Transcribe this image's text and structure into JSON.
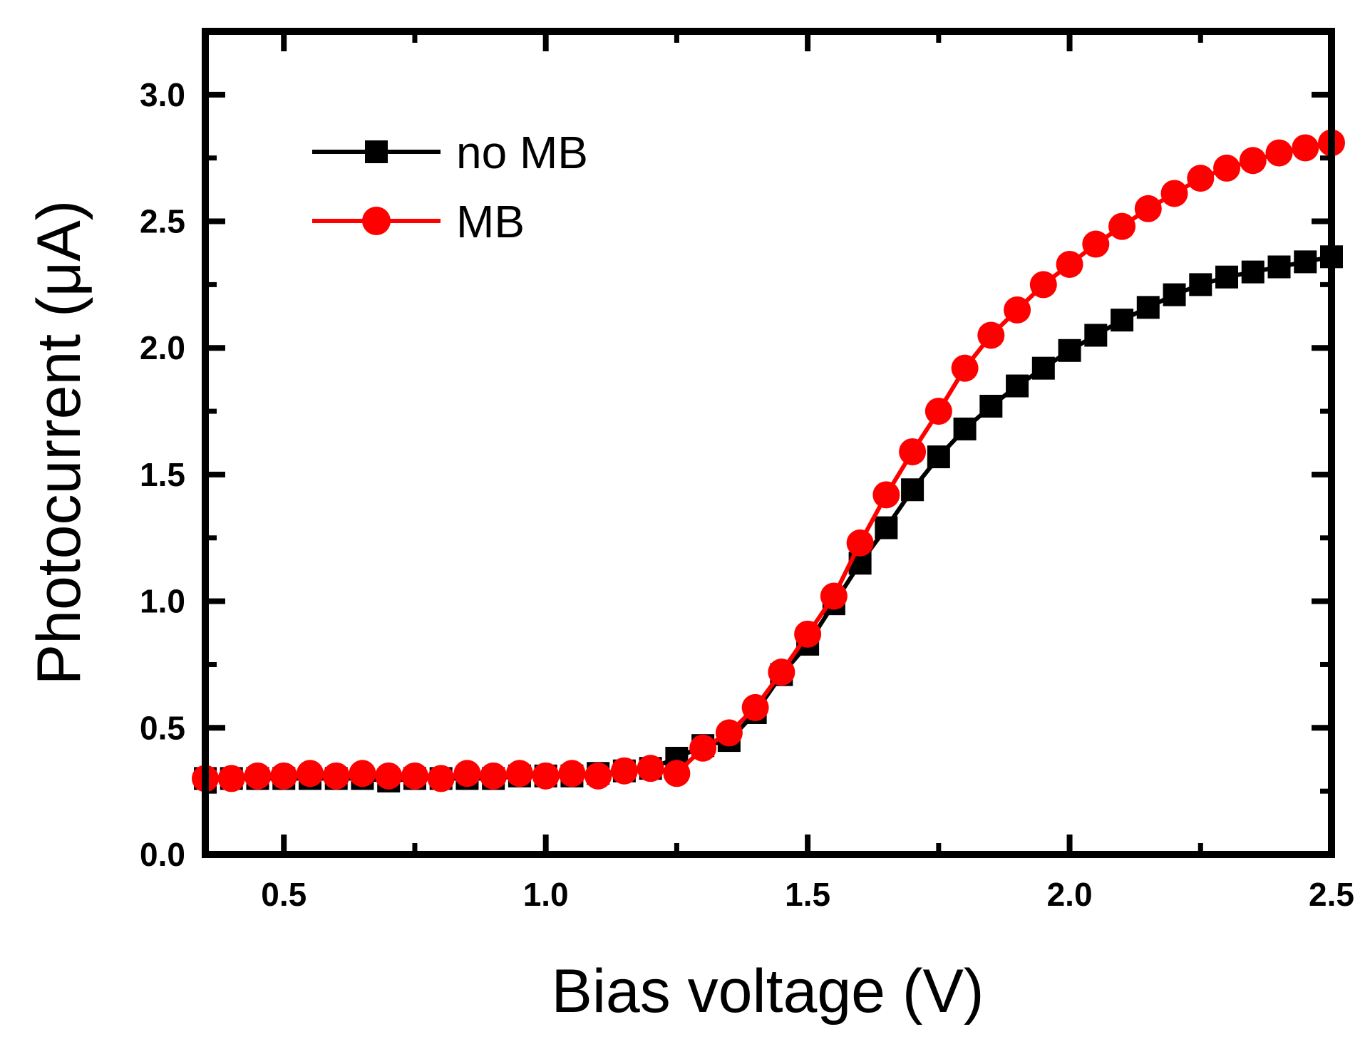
{
  "chart_data": {
    "type": "line",
    "title": "",
    "xlabel": "Bias voltage (V)",
    "ylabel": "Photocurrent (μA)",
    "xlim": [
      0.35,
      2.5
    ],
    "ylim": [
      0.0,
      3.25
    ],
    "xticks": [
      0.5,
      1.0,
      1.5,
      2.0,
      2.5
    ],
    "xtick_labels": [
      "0.5",
      "1.0",
      "1.5",
      "2.0",
      "2.5"
    ],
    "yticks": [
      0.0,
      0.5,
      1.0,
      1.5,
      2.0,
      2.5,
      3.0
    ],
    "ytick_labels": [
      "0.0",
      "0.5",
      "1.0",
      "1.5",
      "2.0",
      "2.5",
      "3.0"
    ],
    "grid": false,
    "legend_position": "top-left",
    "x": [
      0.35,
      0.4,
      0.45,
      0.5,
      0.55,
      0.6,
      0.65,
      0.7,
      0.75,
      0.8,
      0.85,
      0.9,
      0.95,
      1.0,
      1.05,
      1.1,
      1.15,
      1.2,
      1.25,
      1.3,
      1.35,
      1.4,
      1.45,
      1.5,
      1.55,
      1.6,
      1.65,
      1.7,
      1.75,
      1.8,
      1.85,
      1.9,
      1.95,
      2.0,
      2.05,
      2.1,
      2.15,
      2.2,
      2.25,
      2.3,
      2.35,
      2.4,
      2.45,
      2.5
    ],
    "series": [
      {
        "name": "no MB",
        "color": "#000000",
        "marker": "square",
        "values": [
          0.3,
          0.3,
          0.3,
          0.3,
          0.3,
          0.3,
          0.3,
          0.29,
          0.3,
          0.3,
          0.3,
          0.3,
          0.31,
          0.31,
          0.31,
          0.32,
          0.33,
          0.34,
          0.38,
          0.43,
          0.45,
          0.56,
          0.71,
          0.83,
          0.99,
          1.15,
          1.29,
          1.44,
          1.57,
          1.68,
          1.77,
          1.85,
          1.92,
          1.99,
          2.05,
          2.11,
          2.16,
          2.21,
          2.25,
          2.28,
          2.3,
          2.32,
          2.34,
          2.36
        ]
      },
      {
        "name": "MB",
        "color": "#ff0000",
        "marker": "circle",
        "values": [
          0.3,
          0.3,
          0.31,
          0.31,
          0.32,
          0.31,
          0.32,
          0.31,
          0.31,
          0.3,
          0.32,
          0.31,
          0.32,
          0.31,
          0.32,
          0.31,
          0.33,
          0.34,
          0.32,
          0.42,
          0.48,
          0.58,
          0.72,
          0.87,
          1.02,
          1.23,
          1.42,
          1.59,
          1.75,
          1.92,
          2.05,
          2.15,
          2.25,
          2.33,
          2.41,
          2.48,
          2.55,
          2.61,
          2.67,
          2.71,
          2.74,
          2.77,
          2.79,
          2.81
        ]
      }
    ]
  }
}
